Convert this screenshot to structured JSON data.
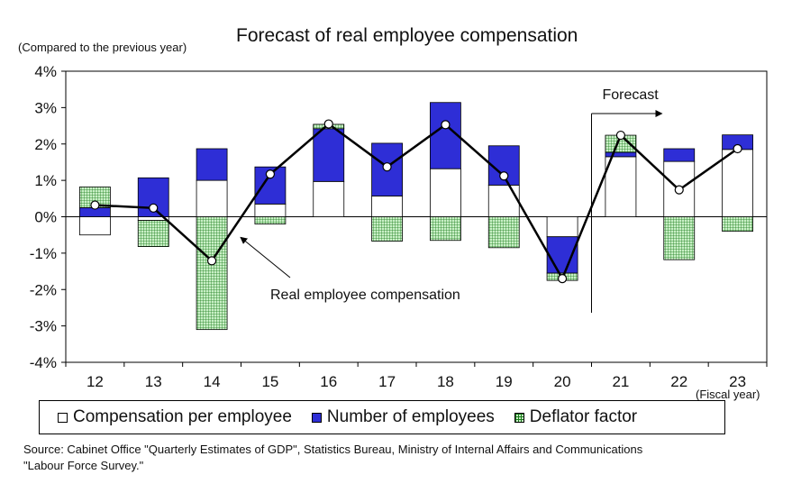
{
  "chart_data": {
    "type": "bar",
    "title": "Forecast of real employee compensation",
    "ylabel": "(Compared to the previous year)",
    "xlabel": "(Fiscal year)",
    "categories": [
      "12",
      "13",
      "14",
      "15",
      "16",
      "17",
      "18",
      "19",
      "20",
      "21",
      "22",
      "23"
    ],
    "ylim": [
      -4,
      4
    ],
    "yticks": [
      "-4%",
      "-3%",
      "-2%",
      "-1%",
      "0%",
      "1%",
      "2%",
      "3%",
      "4%"
    ],
    "ytick_values": [
      -4,
      -3,
      -2,
      -1,
      0,
      1,
      2,
      3,
      4
    ],
    "stacked": true,
    "series": [
      {
        "name": "Compensation per employee",
        "kind": "bar",
        "color": "#ffffff",
        "values": [
          -0.5,
          -0.1,
          1.0,
          0.35,
          0.97,
          0.57,
          1.32,
          0.87,
          -0.55,
          1.65,
          1.52,
          1.85
        ]
      },
      {
        "name": "Number of employees",
        "kind": "bar",
        "color": "#2e2ed6",
        "values": [
          0.25,
          1.07,
          0.87,
          1.02,
          1.45,
          1.45,
          1.82,
          1.08,
          -1.0,
          0.12,
          0.35,
          0.4
        ]
      },
      {
        "name": "Deflator factor",
        "kind": "bar",
        "color": "#c9f0c6",
        "values": [
          0.57,
          -0.72,
          -3.1,
          -0.2,
          0.12,
          -0.67,
          -0.65,
          -0.85,
          -0.2,
          0.47,
          -1.18,
          -0.4
        ]
      },
      {
        "name": "Real employee compensation",
        "kind": "line",
        "color": "#000000",
        "values": [
          0.32,
          0.24,
          -1.21,
          1.17,
          2.55,
          1.37,
          2.53,
          1.12,
          -1.7,
          2.24,
          0.74,
          1.87
        ]
      }
    ],
    "annotations": [
      {
        "text": "Real employee compensation",
        "target_category": "14"
      },
      {
        "text": "Forecast",
        "from_category": "21"
      }
    ],
    "grid": false,
    "legend_position": "bottom"
  },
  "legend": {
    "items": [
      "Compensation per employee",
      "Number of employees",
      "Deflator factor"
    ]
  },
  "source": {
    "line1": "Source: Cabinet Office \"Quarterly Estimates of GDP\", Statistics Bureau, Ministry of Internal Affairs and Communications",
    "line2": "\"Labour Force Survey.\""
  }
}
